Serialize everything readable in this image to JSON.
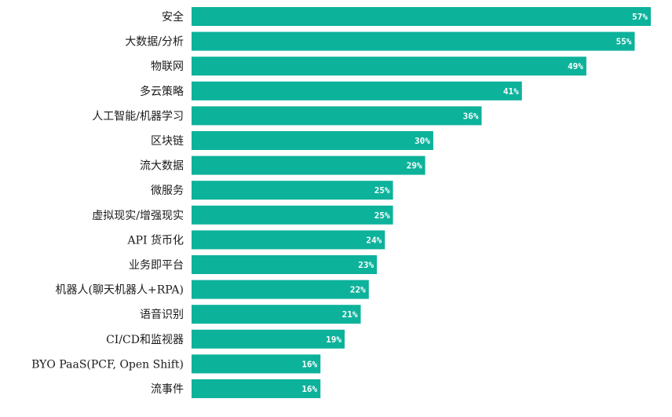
{
  "chart_data": {
    "type": "bar",
    "orientation": "horizontal",
    "categories": [
      "安全",
      "大数据/分析",
      "物联网",
      "多云策略",
      "人工智能/机器学习",
      "区块链",
      "流大数据",
      "微服务",
      "虚拟现实/增强现实",
      "API 货币化",
      "业务即平台",
      "机器人(聊天机器人+RPA)",
      "语音识别",
      "CI/CD和监视器",
      "BYO PaaS(PCF, Open Shift)",
      "流事件"
    ],
    "values": [
      57,
      55,
      49,
      41,
      36,
      30,
      29,
      25,
      25,
      24,
      23,
      22,
      21,
      19,
      16,
      16
    ],
    "value_labels": [
      "57%",
      "55%",
      "49%",
      "41%",
      "36%",
      "30%",
      "29%",
      "25%",
      "25%",
      "24%",
      "23%",
      "22%",
      "21%",
      "19%",
      "16%",
      "16%"
    ],
    "unit": "%",
    "xlim": [
      0,
      57
    ],
    "grid": false,
    "legend": "none",
    "bar_color": "#0db29b",
    "title": "",
    "xlabel": "",
    "ylabel": ""
  }
}
